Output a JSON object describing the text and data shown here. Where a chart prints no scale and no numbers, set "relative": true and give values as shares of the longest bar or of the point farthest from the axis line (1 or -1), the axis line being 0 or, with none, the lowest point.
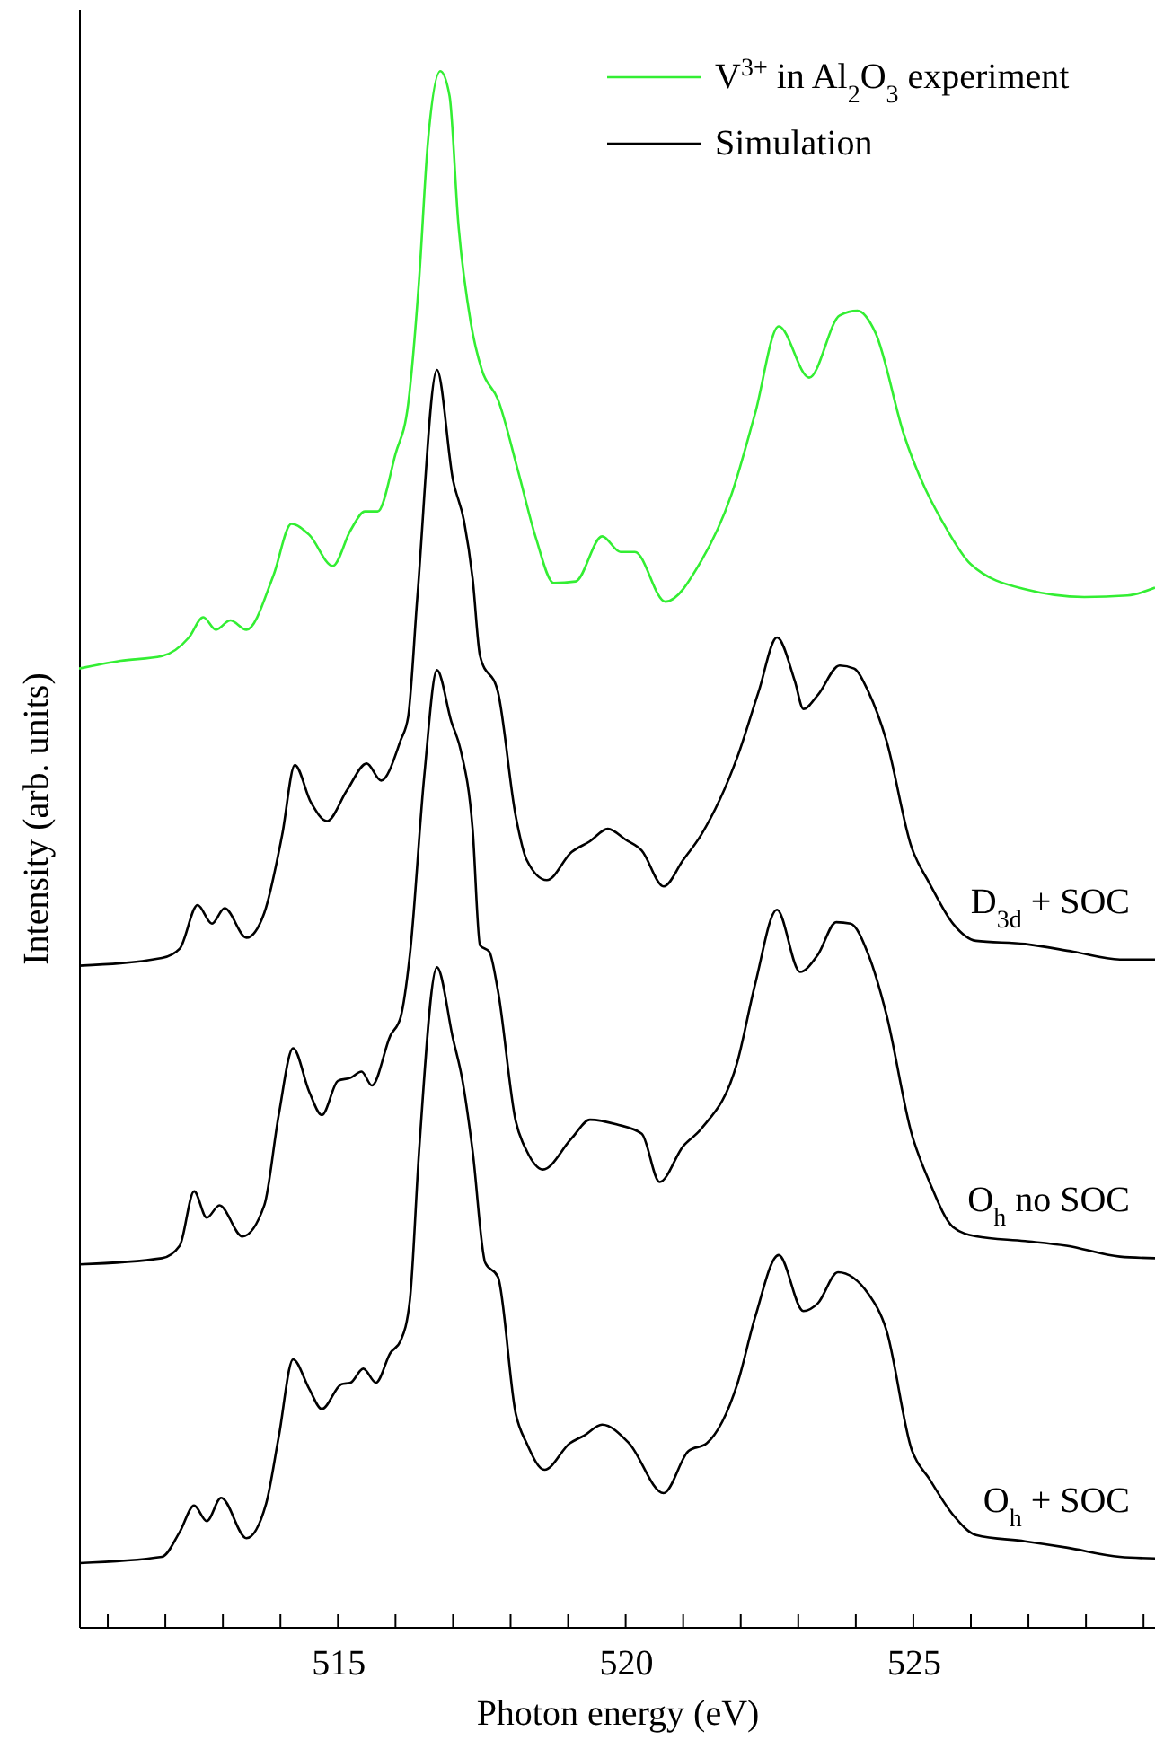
{
  "chart_data": {
    "type": "line",
    "relative": true,
    "xlabel": "Photon energy (eV)",
    "ylabel": "Intensity (arb. units)",
    "xlim": [
      510.5,
      529.2
    ],
    "xticks": [
      {
        "value": 511,
        "label": null
      },
      {
        "value": 512,
        "label": null
      },
      {
        "value": 513,
        "label": null
      },
      {
        "value": 514,
        "label": null
      },
      515,
      {
        "value": 516,
        "label": null
      },
      {
        "value": 517,
        "label": null
      },
      {
        "value": 518,
        "label": null
      },
      {
        "value": 519,
        "label": null
      },
      520,
      {
        "value": 521,
        "label": null
      },
      {
        "value": 522,
        "label": null
      },
      {
        "value": 523,
        "label": null
      },
      {
        "value": 524,
        "label": null
      },
      525,
      {
        "value": 526,
        "label": null
      },
      {
        "value": 527,
        "label": null
      },
      {
        "value": 528,
        "label": null
      },
      {
        "value": 529,
        "label": null
      }
    ],
    "legend": "top right",
    "grid": false,
    "marker": "none",
    "line_style": "solid",
    "annotations": [
      "Simulation"
    ],
    "series": [
      {
        "name": "V$^{3+}$ in Al$_{2}$O$_{3}$ experiment",
        "color": "#33ee33",
        "x": [
          510.5,
          511.22,
          511.94,
          512.41,
          512.66,
          512.88,
          513.13,
          513.41,
          513.88,
          514.19,
          514.5,
          514.91,
          515.22,
          515.47,
          515.69,
          516.0,
          516.22,
          516.41,
          516.56,
          516.78,
          516.94,
          517.09,
          517.31,
          517.5,
          517.78,
          518.13,
          518.44,
          518.75,
          519.13,
          519.59,
          519.91,
          520.16,
          520.69,
          521.31,
          521.84,
          522.25,
          522.66,
          523.19,
          523.72,
          524.03,
          524.34,
          524.84,
          525.59,
          526.0,
          526.94,
          527.97,
          528.72,
          529.2
        ],
        "values": [
          0.616,
          0.621,
          0.624,
          0.636,
          0.649,
          0.641,
          0.647,
          0.641,
          0.676,
          0.709,
          0.702,
          0.682,
          0.705,
          0.717,
          0.717,
          0.754,
          0.786,
          0.866,
          0.953,
          1.0,
          0.984,
          0.903,
          0.838,
          0.808,
          0.789,
          0.743,
          0.7,
          0.671,
          0.672,
          0.701,
          0.691,
          0.691,
          0.659,
          0.685,
          0.728,
          0.78,
          0.836,
          0.803,
          0.843,
          0.846,
          0.832,
          0.766,
          0.705,
          0.683,
          0.667,
          0.662,
          0.663,
          0.668
        ]
      },
      {
        "name": "D$_{3d}$ + SOC",
        "color": "#000000",
        "x": [
          510.5,
          511.94,
          512.25,
          512.56,
          512.81,
          513.03,
          513.41,
          513.72,
          514.03,
          514.25,
          514.53,
          514.81,
          515.16,
          515.5,
          515.75,
          516.09,
          516.22,
          516.38,
          516.72,
          517.0,
          517.19,
          517.34,
          517.47,
          517.78,
          518.09,
          518.28,
          518.63,
          519.06,
          519.38,
          519.69,
          520.0,
          520.28,
          520.66,
          521.0,
          521.31,
          521.94,
          522.31,
          522.63,
          522.94,
          523.09,
          523.34,
          523.72,
          523.97,
          524.22,
          524.53,
          524.97,
          525.28,
          525.69,
          526.09,
          526.94,
          527.78,
          528.59,
          529.2
        ],
        "values": [
          0.425,
          0.43,
          0.436,
          0.464,
          0.452,
          0.462,
          0.443,
          0.459,
          0.509,
          0.554,
          0.53,
          0.518,
          0.538,
          0.555,
          0.544,
          0.57,
          0.585,
          0.662,
          0.808,
          0.737,
          0.711,
          0.674,
          0.624,
          0.601,
          0.521,
          0.493,
          0.48,
          0.498,
          0.505,
          0.513,
          0.506,
          0.499,
          0.476,
          0.493,
          0.509,
          0.559,
          0.601,
          0.636,
          0.608,
          0.59,
          0.599,
          0.618,
          0.616,
          0.601,
          0.57,
          0.501,
          0.478,
          0.452,
          0.441,
          0.439,
          0.434,
          0.429,
          0.429
        ]
      },
      {
        "name": "O$_{h}$ no SOC",
        "color": "#000000",
        "x": [
          510.5,
          511.94,
          512.25,
          512.5,
          512.72,
          512.94,
          513.34,
          513.72,
          513.97,
          514.22,
          514.5,
          514.72,
          515.0,
          515.22,
          515.41,
          515.59,
          515.91,
          516.09,
          516.25,
          516.5,
          516.72,
          516.97,
          517.13,
          517.34,
          517.47,
          517.63,
          517.78,
          518.09,
          518.28,
          518.56,
          519.06,
          519.38,
          519.84,
          520.28,
          520.59,
          521.0,
          521.31,
          521.94,
          522.25,
          522.63,
          523.03,
          523.34,
          523.66,
          523.91,
          524.22,
          524.53,
          524.97,
          525.28,
          525.69,
          526.09,
          526.94,
          527.66,
          528.59,
          529.2
        ],
        "values": [
          0.233,
          0.237,
          0.245,
          0.28,
          0.263,
          0.271,
          0.251,
          0.271,
          0.329,
          0.372,
          0.344,
          0.329,
          0.351,
          0.353,
          0.357,
          0.348,
          0.38,
          0.392,
          0.432,
          0.547,
          0.615,
          0.582,
          0.564,
          0.513,
          0.438,
          0.434,
          0.409,
          0.325,
          0.306,
          0.294,
          0.314,
          0.326,
          0.323,
          0.317,
          0.286,
          0.309,
          0.32,
          0.363,
          0.413,
          0.461,
          0.421,
          0.432,
          0.453,
          0.452,
          0.432,
          0.394,
          0.317,
          0.286,
          0.257,
          0.251,
          0.248,
          0.245,
          0.238,
          0.237
        ]
      },
      {
        "name": "O$_{h}$ + SOC",
        "color": "#000000",
        "x": [
          510.5,
          511.94,
          512.25,
          512.5,
          512.72,
          512.97,
          513.41,
          513.75,
          513.97,
          514.22,
          514.5,
          514.72,
          515.06,
          515.22,
          515.44,
          515.66,
          515.91,
          516.09,
          516.25,
          516.41,
          516.72,
          517.0,
          517.16,
          517.34,
          517.56,
          517.78,
          518.09,
          518.28,
          518.59,
          519.03,
          519.28,
          519.59,
          520.06,
          520.66,
          521.09,
          521.41,
          521.94,
          522.25,
          522.66,
          523.09,
          523.34,
          523.69,
          524.22,
          524.53,
          524.97,
          525.28,
          525.69,
          526.09,
          526.94,
          527.66,
          528.59,
          529.2
        ],
        "values": [
          0.041,
          0.045,
          0.061,
          0.078,
          0.068,
          0.083,
          0.057,
          0.079,
          0.122,
          0.172,
          0.153,
          0.14,
          0.156,
          0.157,
          0.166,
          0.157,
          0.176,
          0.184,
          0.21,
          0.306,
          0.424,
          0.378,
          0.352,
          0.306,
          0.234,
          0.225,
          0.137,
          0.118,
          0.101,
          0.118,
          0.123,
          0.13,
          0.118,
          0.086,
          0.113,
          0.118,
          0.156,
          0.199,
          0.239,
          0.203,
          0.208,
          0.228,
          0.214,
          0.191,
          0.114,
          0.095,
          0.072,
          0.059,
          0.055,
          0.051,
          0.045,
          0.044
        ]
      }
    ]
  }
}
